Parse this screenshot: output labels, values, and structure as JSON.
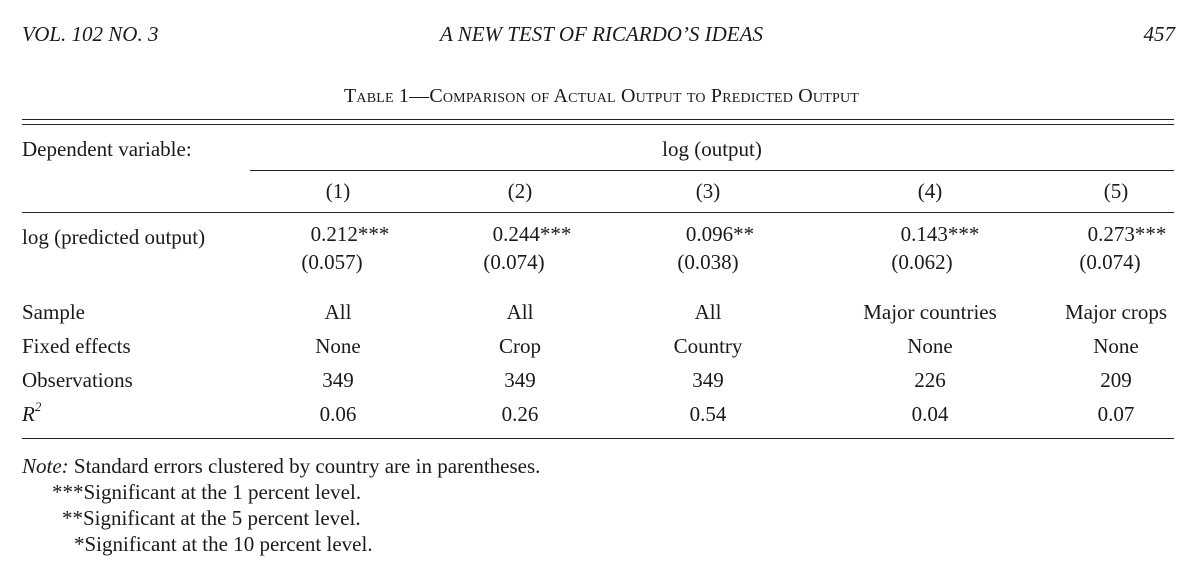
{
  "header": {
    "left": "VOL. 102 NO. 3",
    "center": "A NEW TEST OF RICARDO’S IDEAS",
    "right": "457"
  },
  "table": {
    "caption": "Table 1—Comparison of Actual Output to Predicted Output",
    "dep_var_label": "Dependent variable:",
    "dep_var": "log (output)",
    "columns": [
      "(1)",
      "(2)",
      "(3)",
      "(4)",
      "(5)"
    ],
    "coef_row": {
      "label": "log (predicted output)",
      "coefs": [
        "0.212***",
        "0.244***",
        "0.096**",
        "0.143***",
        "0.273***"
      ],
      "ses": [
        "(0.057)",
        "(0.074)",
        "(0.038)",
        "(0.062)",
        "(0.074)"
      ]
    },
    "sample": {
      "label": "Sample",
      "values": [
        "All",
        "All",
        "All",
        "Major countries",
        "Major crops"
      ]
    },
    "fixed_effects": {
      "label": "Fixed effects",
      "values": [
        "None",
        "Crop",
        "Country",
        "None",
        "None"
      ]
    },
    "observations": {
      "label": "Observations",
      "values": [
        "349",
        "349",
        "349",
        "226",
        "209"
      ]
    },
    "r2": {
      "label": "R",
      "sup": "2",
      "values": [
        "0.06",
        "0.26",
        "0.54",
        "0.04",
        "0.07"
      ]
    }
  },
  "notes": {
    "lead": "Note:",
    "text": " Standard errors clustered by country are in parentheses.",
    "sig": [
      {
        "stars": "***",
        "text": "Significant at the 1 percent level."
      },
      {
        "stars": "**",
        "text": "Significant at the 5 percent level."
      },
      {
        "stars": "*",
        "text": "Significant at the 10 percent level."
      }
    ]
  }
}
